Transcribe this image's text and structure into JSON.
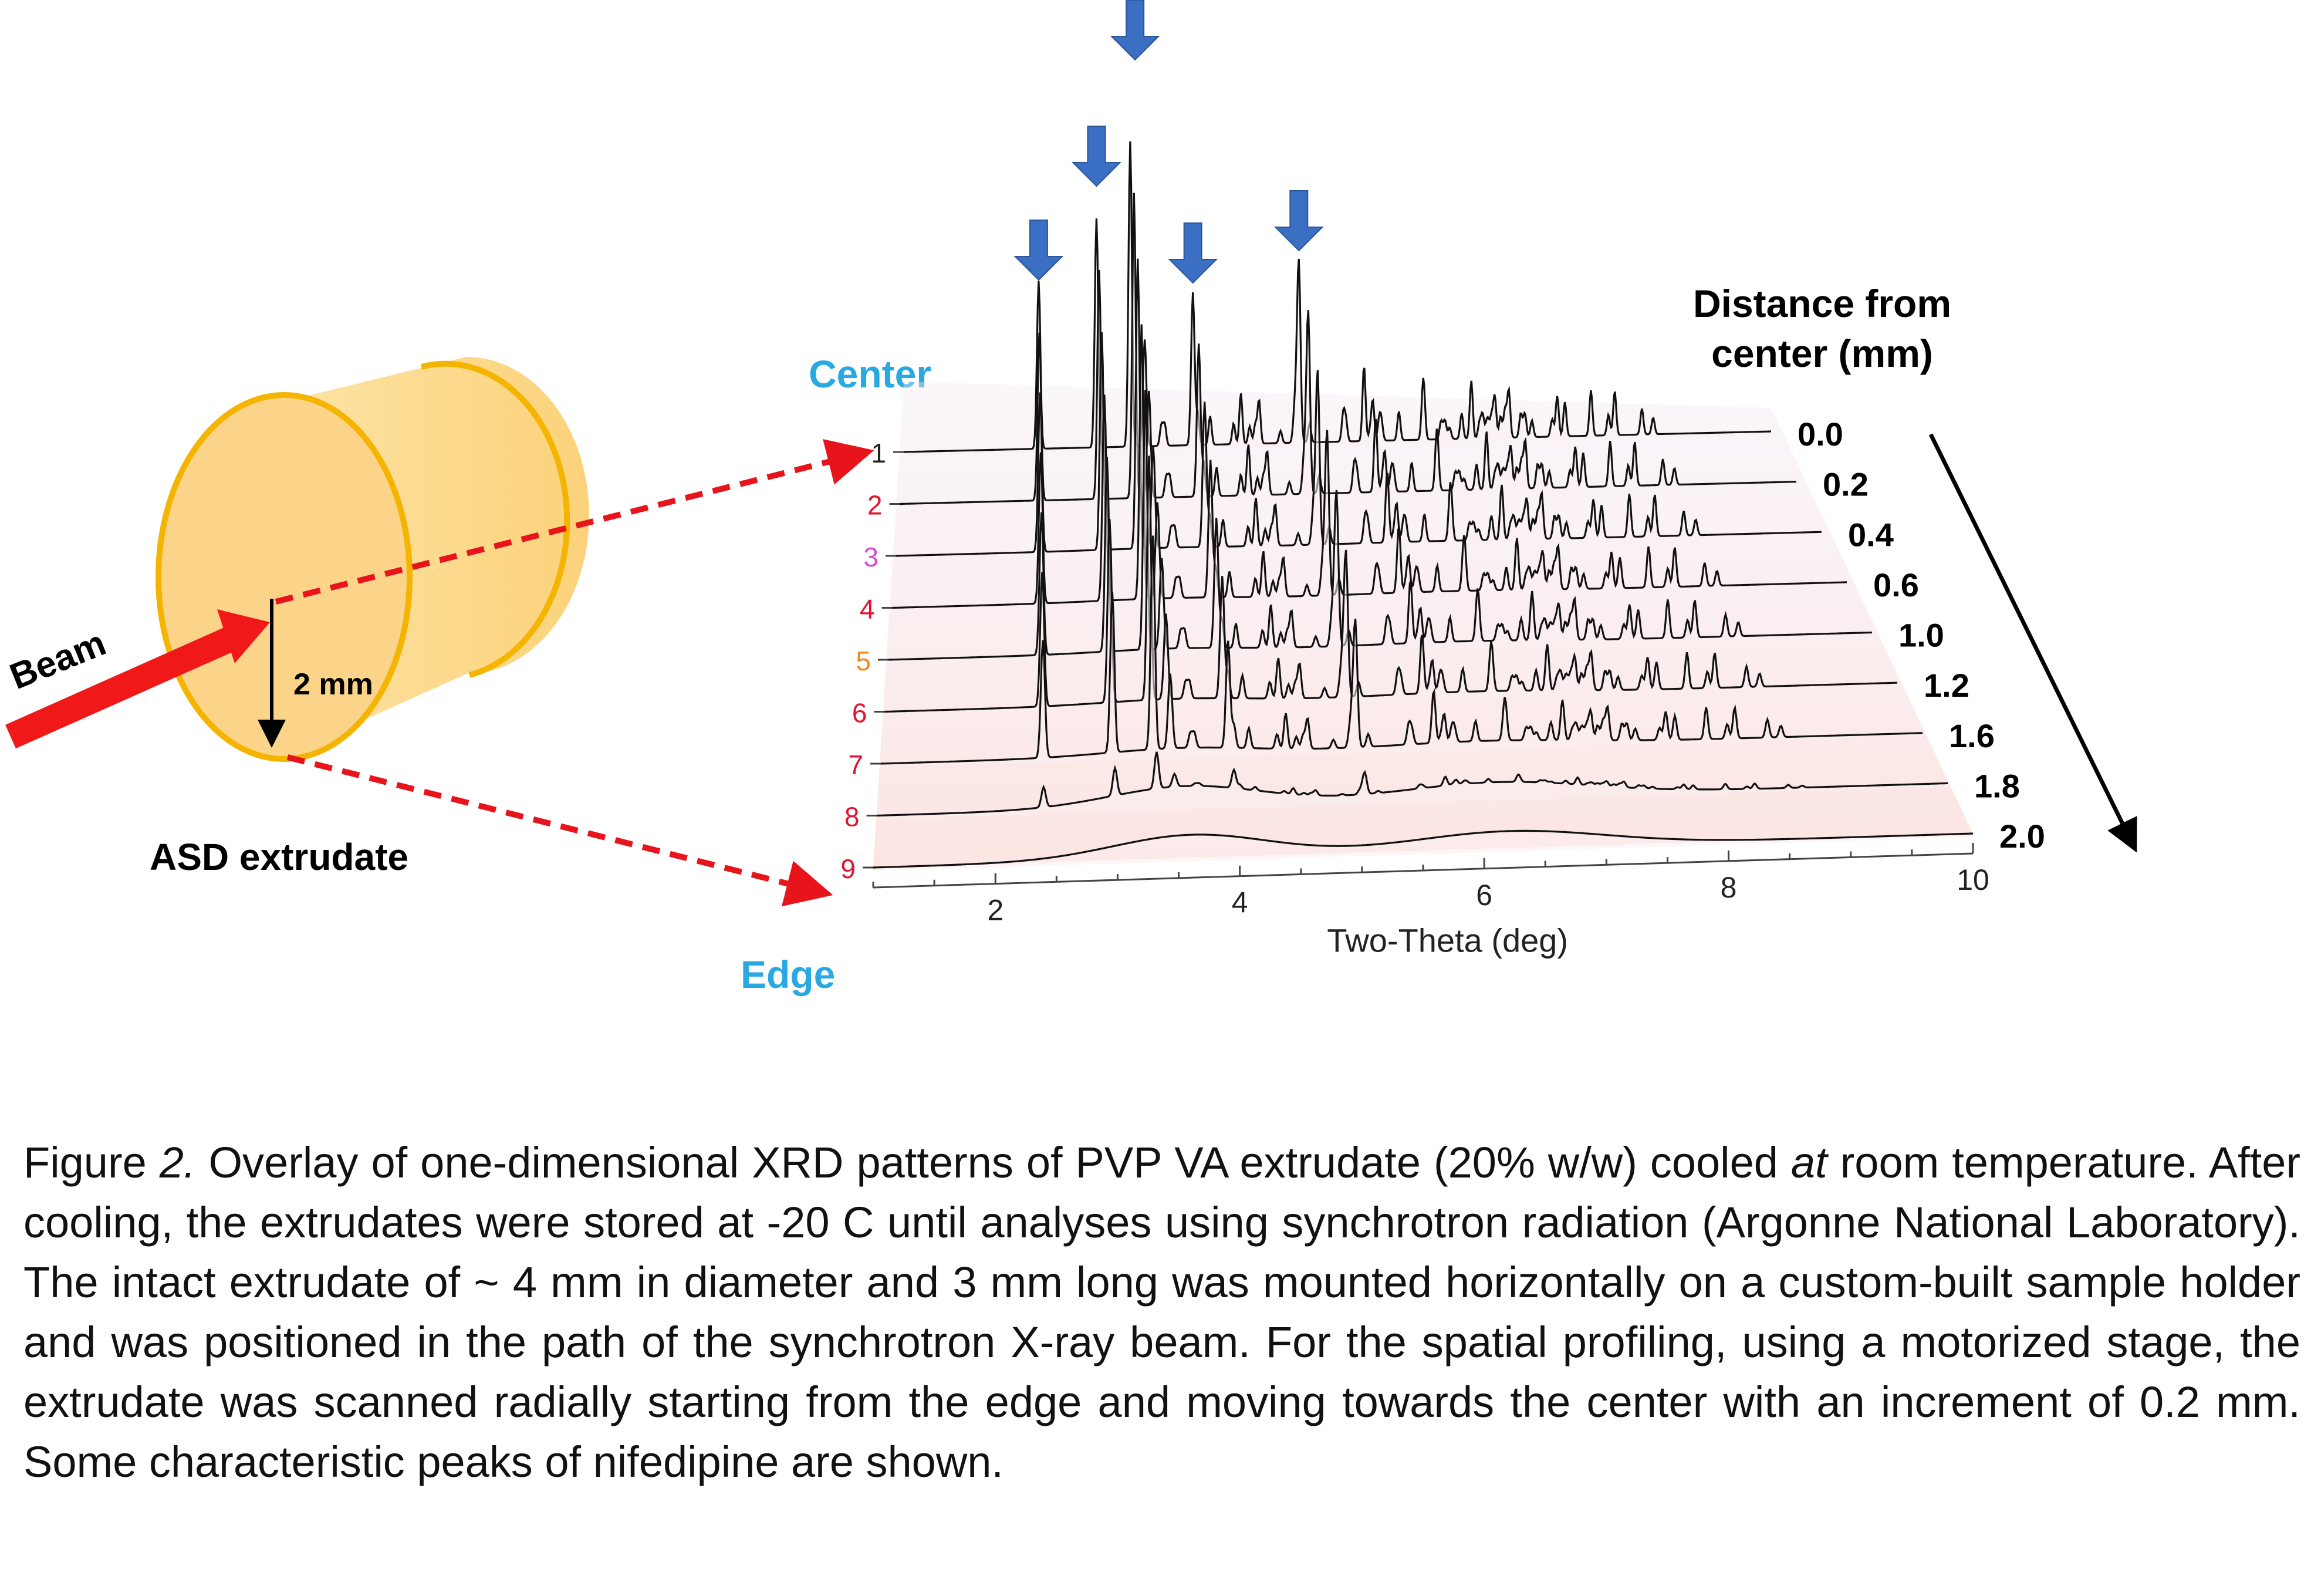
{
  "diagram": {
    "beam_label": "Beam",
    "radius_label": "2 mm",
    "sample_label": "ASD extrudate",
    "center_label": "Center",
    "edge_label": "Edge",
    "distance_header_line1": "Distance from",
    "distance_header_line2": "center (mm)"
  },
  "chart_data": {
    "type": "line",
    "subtype": "3d-waterfall-overlay",
    "xlabel": "Two-Theta (deg)",
    "xlim": [
      1,
      10
    ],
    "xticks": [
      "2",
      "4",
      "6",
      "8",
      "10"
    ],
    "scan_numbers": [
      "1",
      "2",
      "3",
      "4",
      "5",
      "6",
      "7",
      "8",
      "9"
    ],
    "scan_number_colors": [
      "#222222",
      "#e0142e",
      "#d84ad8",
      "#e0142e",
      "#f08a1e",
      "#e0142e",
      "#e0142e",
      "#e0142e",
      "#e0142e"
    ],
    "distances_mm": [
      "0.0",
      "0.2",
      "0.4",
      "0.6",
      "1.0",
      "1.2",
      "1.6",
      "1.8",
      "2.0"
    ],
    "marked_peaks_two_theta": [
      2.4,
      3.0,
      3.4,
      4.0,
      5.1
    ],
    "major_peak_positions": [
      2.4,
      3.0,
      3.35,
      3.5,
      4.0,
      5.1
    ],
    "peak_heights_relative": [
      0.55,
      0.75,
      1.0,
      0.35,
      0.5,
      0.55
    ],
    "crystallinity_by_scan": [
      1.0,
      1.0,
      0.95,
      0.9,
      0.85,
      0.8,
      0.7,
      0.12,
      0.0
    ],
    "amorphous_halo_centers": [
      3.6,
      6.2
    ],
    "arrow_color": "#3a6fc4",
    "beam_color": "#f01818",
    "extrudate_color": "#fbd98c",
    "extrudate_edge_color": "#f4b400"
  },
  "caption": {
    "prefix": "Figure ",
    "number": "2.",
    "text_a": "  Overlay of one-dimensional XRD patterns of PVP VA extrudate (20% w/w) cooled ",
    "italic_word": "at",
    "text_b": " room temperature. After cooling, the extrudates were stored at -20 C until analyses using synchrotron radiation (Argonne National Laboratory). The intact extrudate of ~ 4 mm in diameter and 3 mm long was mounted horizontally on a custom-built sample holder and was positioned in the path of the synchrotron X-ray beam. For the spatial profiling, using a motorized stage, the extrudate was scanned radially starting from the edge and moving towards the center with an increment of 0.2 mm. Some characteristic peaks of nifedipine are shown."
  }
}
